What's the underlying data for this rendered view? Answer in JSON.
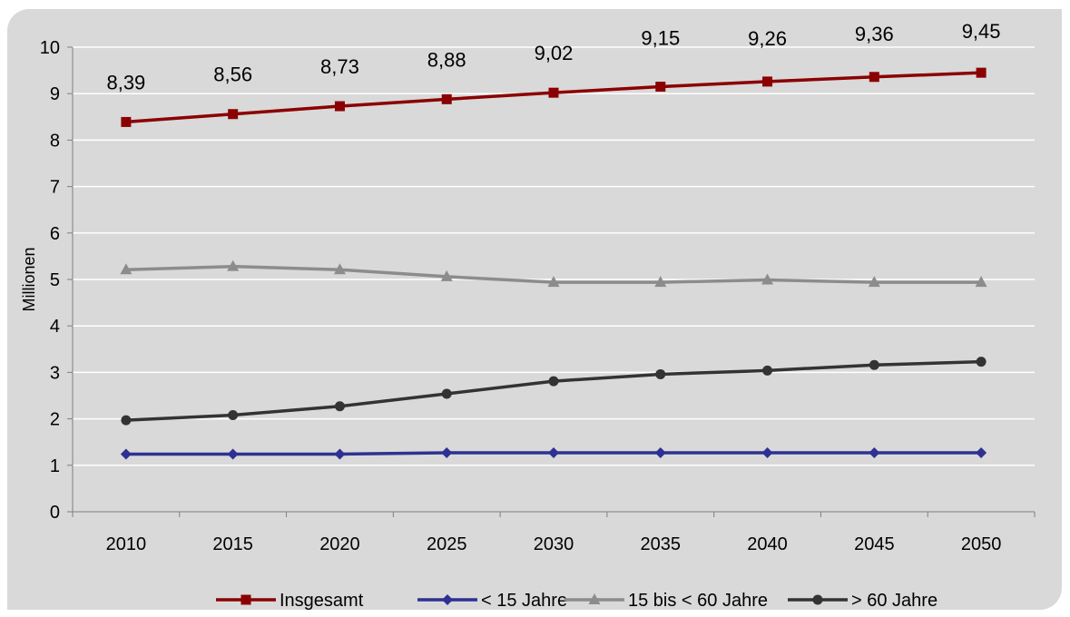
{
  "chart_data": {
    "type": "line",
    "title": "",
    "xlabel": "",
    "ylabel": "Millionen",
    "x": [
      "2010",
      "2015",
      "2020",
      "2025",
      "2030",
      "2035",
      "2040",
      "2045",
      "2050"
    ],
    "ylim": [
      0,
      10
    ],
    "yticks": [
      "0",
      "1",
      "2",
      "3",
      "4",
      "5",
      "6",
      "7",
      "8",
      "9",
      "10"
    ],
    "grid": true,
    "legend_position": "bottom",
    "series": [
      {
        "name": "Insgesamt",
        "marker": "square",
        "color": "#8b0000",
        "values": [
          8.39,
          8.56,
          8.73,
          8.88,
          9.02,
          9.15,
          9.26,
          9.36,
          9.45
        ],
        "labels": [
          "8,39",
          "8,56",
          "8,73",
          "8,88",
          "9,02",
          "9,15",
          "9,26",
          "9,36",
          "9,45"
        ]
      },
      {
        "name": "< 15 Jahre",
        "marker": "diamond",
        "color": "#2e3192",
        "values": [
          1.24,
          1.24,
          1.24,
          1.27,
          1.27,
          1.27,
          1.27,
          1.27,
          1.27
        ]
      },
      {
        "name": "15 bis < 60 Jahre",
        "marker": "triangle",
        "color": "#8c8c8c",
        "values": [
          5.21,
          5.28,
          5.21,
          5.06,
          4.94,
          4.94,
          4.99,
          4.94,
          4.94
        ]
      },
      {
        "name": "> 60 Jahre",
        "marker": "circle",
        "color": "#333333",
        "values": [
          1.97,
          2.08,
          2.27,
          2.54,
          2.81,
          2.96,
          3.04,
          3.16,
          3.23
        ]
      }
    ]
  }
}
